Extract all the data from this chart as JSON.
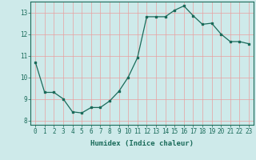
{
  "x": [
    0,
    1,
    2,
    3,
    4,
    5,
    6,
    7,
    8,
    9,
    10,
    11,
    12,
    13,
    14,
    15,
    16,
    17,
    18,
    19,
    20,
    21,
    22,
    23
  ],
  "y": [
    10.7,
    9.3,
    9.3,
    9.0,
    8.4,
    8.35,
    8.6,
    8.6,
    8.9,
    9.35,
    10.0,
    10.9,
    12.8,
    12.8,
    12.8,
    13.1,
    13.3,
    12.85,
    12.45,
    12.5,
    12.0,
    11.65,
    11.65,
    11.55
  ],
  "xlabel": "Humidex (Indice chaleur)",
  "ylim": [
    7.8,
    13.5
  ],
  "xlim": [
    -0.5,
    23.5
  ],
  "yticks": [
    8,
    9,
    10,
    11,
    12,
    13
  ],
  "xticks": [
    0,
    1,
    2,
    3,
    4,
    5,
    6,
    7,
    8,
    9,
    10,
    11,
    12,
    13,
    14,
    15,
    16,
    17,
    18,
    19,
    20,
    21,
    22,
    23
  ],
  "line_color": "#1a6b5a",
  "marker": "s",
  "marker_size": 2.0,
  "bg_color": "#ceeaea",
  "grid_color": "#e8a0a0",
  "axis_color": "#1a6b5a",
  "label_fontsize": 6.5,
  "tick_fontsize": 5.5
}
